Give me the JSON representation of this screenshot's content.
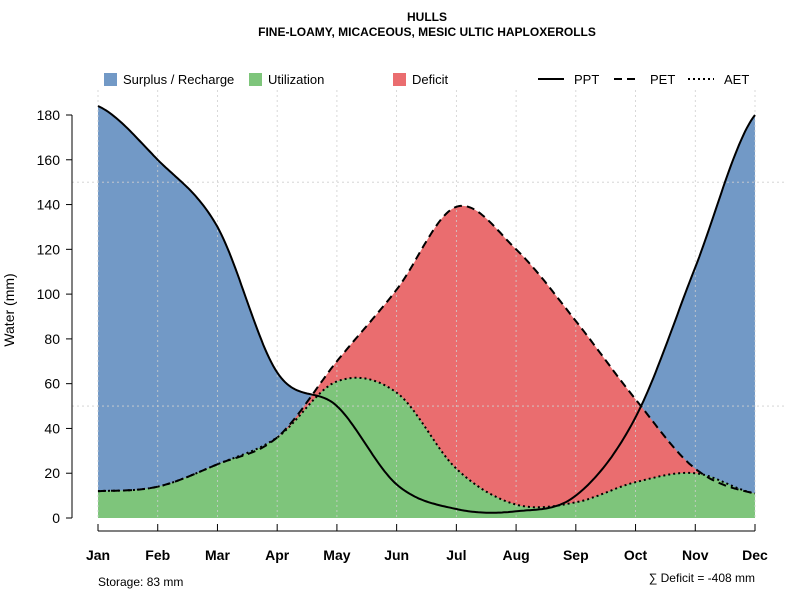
{
  "chart_data": {
    "type": "area",
    "title": "HULLS",
    "subtitle": "FINE-LOAMY, MICACEOUS, MESIC ULTIC HAPLOXEROLLS",
    "xlabel": "",
    "ylabel": "Water (mm)",
    "ylim": [
      0,
      190
    ],
    "yticks": [
      0,
      20,
      40,
      60,
      80,
      100,
      120,
      140,
      160,
      180
    ],
    "categories": [
      "Jan",
      "Feb",
      "Mar",
      "Apr",
      "May",
      "Jun",
      "Jul",
      "Aug",
      "Sep",
      "Oct",
      "Nov",
      "Dec"
    ],
    "series": [
      {
        "name": "PPT",
        "line_style": "solid",
        "values": [
          184,
          160,
          130,
          65,
          50,
          15,
          4,
          3,
          10,
          45,
          112,
          180
        ]
      },
      {
        "name": "PET",
        "line_style": "dashed",
        "values": [
          12,
          14,
          24,
          36,
          70,
          102,
          139,
          120,
          88,
          53,
          22,
          11
        ]
      },
      {
        "name": "AET",
        "line_style": "dotted",
        "values": [
          12,
          14,
          24,
          36,
          61,
          56,
          22,
          6,
          7,
          16,
          20,
          11
        ]
      }
    ],
    "fills": [
      {
        "name": "Surplus / Recharge",
        "color": "#7299C6"
      },
      {
        "name": "Utilization",
        "color": "#7EC57B"
      },
      {
        "name": "Deficit",
        "color": "#EA6D6F"
      }
    ],
    "footer": {
      "storage": "Storage: 83 mm",
      "deficit": "∑ Deficit = -408 mm"
    }
  }
}
